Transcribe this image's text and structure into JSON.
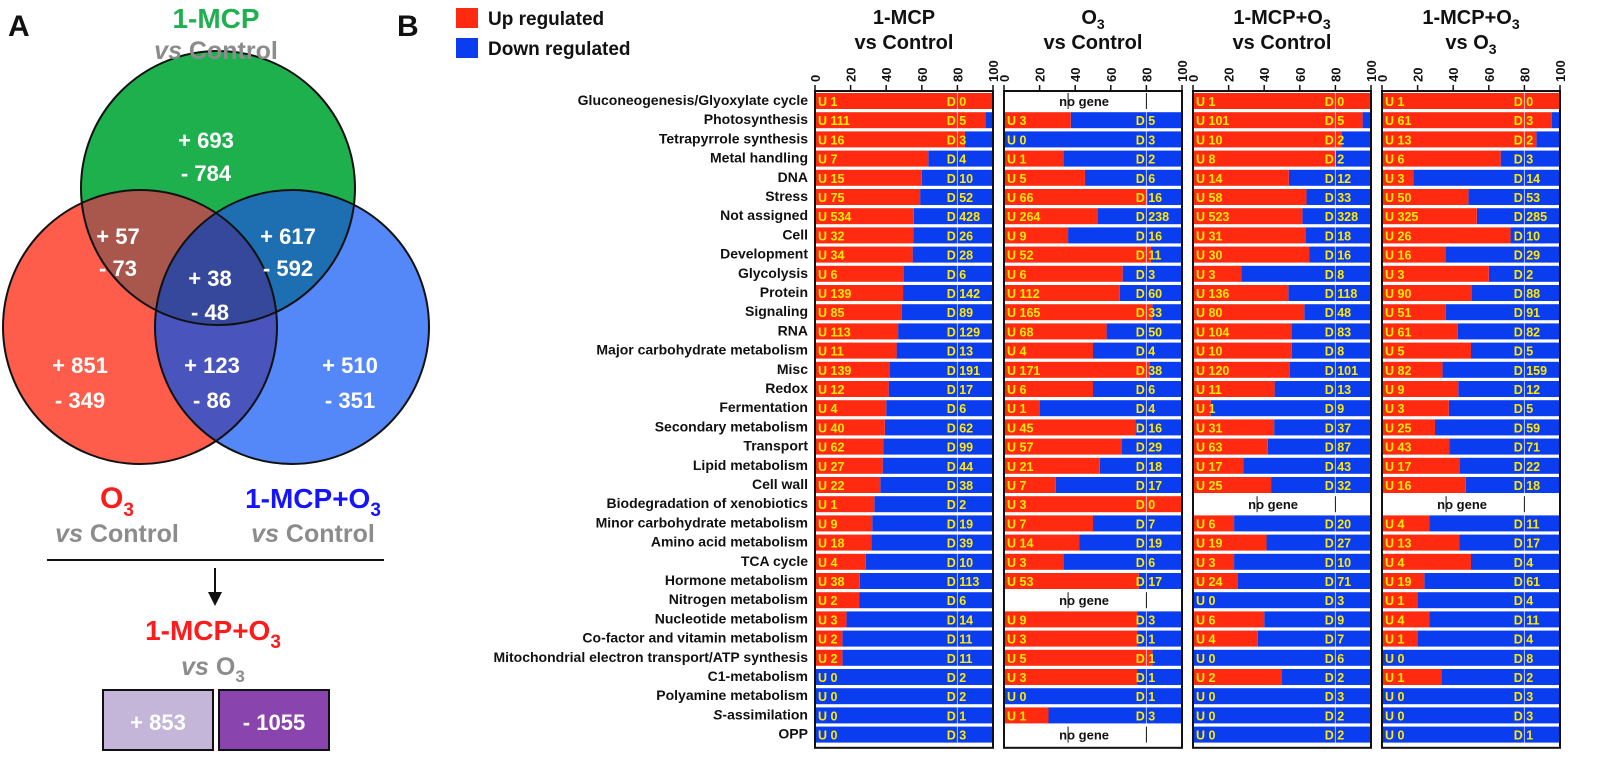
{
  "panel_a": {
    "letter": "A",
    "circles": [
      {
        "key": "mcp",
        "title": "1-MCP",
        "subtitle_em": "vs",
        "subtitle": " Control",
        "up": "+ 693",
        "down": "- 784",
        "color": "#1fb04f",
        "title_color": "#1fb04f"
      },
      {
        "key": "o3",
        "title": "O",
        "title_sub": "3",
        "subtitle_em": "vs",
        "subtitle": " Control",
        "up": "+ 851",
        "down": "- 349",
        "color": "#ff4f3c",
        "title_color": "#ff1b1b"
      },
      {
        "key": "combo",
        "title": "1-MCP+O",
        "title_sub": "3",
        "subtitle_em": "vs",
        "subtitle": " Control",
        "up": "+ 510",
        "down": "- 351",
        "color": "#2e6cf5",
        "title_color": "#1414ff"
      }
    ],
    "overlaps": {
      "mcp_o3": {
        "up": "+ 57",
        "down": "- 73"
      },
      "mcp_combo": {
        "up": "+ 617",
        "down": "- 592"
      },
      "all": {
        "up": "+ 38",
        "down": "- 48"
      },
      "o3_combo": {
        "up": "+ 123",
        "down": "- 86"
      }
    },
    "bottom": {
      "title": "1-MCP+O",
      "title_sub": "3",
      "title_color": "#ff1b1b",
      "subtitle_em": "vs",
      "subtitle": " O",
      "subtitle_sub": "3",
      "up_box": {
        "label": "+ 853",
        "color": "#c3b6d9"
      },
      "down_box": {
        "label": "- 1055",
        "color": "#8a44ad"
      }
    }
  },
  "panel_b": {
    "letter": "B",
    "legend": [
      {
        "label": "Up regulated",
        "color": "#ff2a0f"
      },
      {
        "label": "Down regulated",
        "color": "#0a3cf0"
      }
    ]
  },
  "chart_data": {
    "type": "bar",
    "orientation": "horizontal-stacked-100",
    "axis_ticks": [
      "0",
      "20",
      "40",
      "60",
      "80",
      "100"
    ],
    "xlim": [
      0,
      100
    ],
    "up_prefix": "U ",
    "down_prefix": "D ",
    "no_gene_label": "no gene",
    "categories": [
      "Gluconeogenesis/Glyoxylate cycle",
      "Photosynthesis",
      "Tetrapyrrole synthesis",
      "Metal handling",
      "DNA",
      "Stress",
      "Not assigned",
      "Cell",
      "Development",
      "Glycolysis",
      "Protein",
      "Signaling",
      "RNA",
      "Major carbohydrate metabolism",
      "Misc",
      "Redox",
      "Fermentation",
      "Secondary metabolism",
      "Transport",
      "Lipid metabolism",
      "Cell wall",
      "Biodegradation of xenobiotics",
      "Minor carbohydrate metabolism",
      "Amino acid metabolism",
      "TCA cycle",
      "Hormone metabolism",
      "Nitrogen metabolism",
      "Nucleotide metabolism",
      "Co-factor and vitamin metabolism",
      "Mitochondrial electron transport/ATP synthesis",
      "C1-metabolism",
      "Polyamine metabolism",
      "S-assimilation",
      "OPP"
    ],
    "series": [
      {
        "title": "1-MCP",
        "subtitle": "vs Control",
        "up": [
          1,
          111,
          16,
          7,
          15,
          75,
          534,
          32,
          34,
          6,
          139,
          85,
          113,
          11,
          139,
          12,
          4,
          40,
          62,
          27,
          22,
          1,
          9,
          18,
          4,
          38,
          2,
          3,
          2,
          2,
          0,
          0,
          0,
          0
        ],
        "down": [
          0,
          5,
          3,
          4,
          10,
          52,
          428,
          26,
          28,
          6,
          142,
          89,
          129,
          13,
          191,
          17,
          6,
          62,
          99,
          44,
          38,
          2,
          19,
          39,
          10,
          113,
          6,
          14,
          11,
          11,
          2,
          2,
          1,
          3
        ]
      },
      {
        "title": "O",
        "title_sub": "3",
        "subtitle": "vs Control",
        "up": [
          null,
          3,
          0,
          1,
          5,
          66,
          264,
          9,
          52,
          6,
          112,
          165,
          68,
          4,
          171,
          6,
          1,
          45,
          57,
          21,
          7,
          3,
          7,
          14,
          3,
          53,
          null,
          9,
          3,
          5,
          3,
          0,
          1,
          null
        ],
        "down": [
          null,
          5,
          3,
          2,
          6,
          16,
          238,
          16,
          11,
          3,
          60,
          33,
          50,
          4,
          38,
          6,
          4,
          16,
          29,
          18,
          17,
          0,
          7,
          19,
          6,
          17,
          null,
          3,
          1,
          1,
          1,
          1,
          3,
          null
        ]
      },
      {
        "title": "1-MCP+O",
        "title_sub": "3",
        "subtitle": "vs Control",
        "up": [
          1,
          101,
          10,
          8,
          14,
          58,
          523,
          31,
          30,
          3,
          136,
          80,
          104,
          10,
          120,
          11,
          1,
          31,
          63,
          17,
          25,
          null,
          6,
          19,
          3,
          24,
          0,
          6,
          4,
          0,
          2,
          0,
          0,
          0
        ],
        "down": [
          0,
          5,
          2,
          2,
          12,
          33,
          328,
          18,
          16,
          8,
          118,
          48,
          83,
          8,
          101,
          13,
          9,
          37,
          87,
          43,
          32,
          null,
          20,
          27,
          10,
          71,
          3,
          9,
          7,
          6,
          2,
          3,
          2,
          2
        ]
      },
      {
        "title": "1-MCP+O",
        "title_sub": "3",
        "subtitle": "vs O",
        "subtitle_sub": "3",
        "up": [
          1,
          61,
          13,
          6,
          3,
          50,
          325,
          26,
          16,
          3,
          90,
          51,
          61,
          5,
          82,
          9,
          3,
          25,
          43,
          17,
          16,
          null,
          4,
          13,
          4,
          19,
          1,
          4,
          1,
          0,
          1,
          0,
          0,
          0
        ],
        "down": [
          0,
          3,
          2,
          3,
          14,
          53,
          285,
          10,
          29,
          2,
          88,
          91,
          82,
          5,
          159,
          12,
          5,
          59,
          71,
          22,
          18,
          null,
          11,
          17,
          4,
          61,
          4,
          11,
          4,
          8,
          2,
          3,
          3,
          1
        ]
      }
    ]
  }
}
